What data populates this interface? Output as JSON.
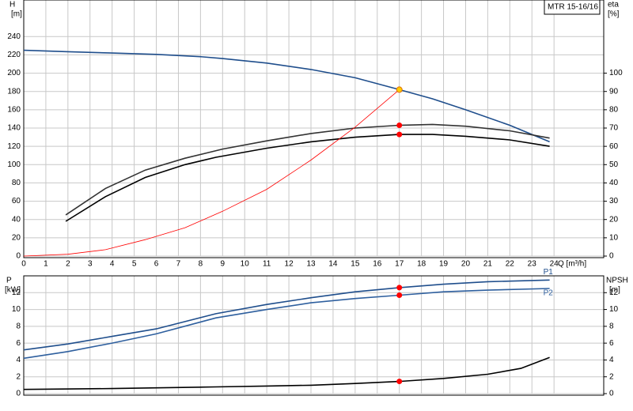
{
  "chart_data": [
    {
      "type": "line",
      "title": "MTR 15-16/16",
      "y_label": "H",
      "y_unit": "[m]",
      "y2_label": "eta",
      "y2_unit": "[%]",
      "x_label": "Q [m³/h]",
      "xlim": [
        0,
        26.25
      ],
      "xticks": [
        0,
        1,
        2,
        3,
        4,
        5,
        6,
        7,
        8,
        9,
        10,
        11,
        12,
        13,
        14,
        15,
        16,
        17,
        18,
        19,
        20,
        21,
        22,
        23,
        24
      ],
      "ylim": [
        0,
        280
      ],
      "yticks": [
        0,
        20,
        40,
        60,
        80,
        100,
        120,
        140,
        160,
        180,
        200,
        220,
        240
      ],
      "y2lim": [
        0,
        140
      ],
      "y2ticks": [
        0,
        10,
        20,
        30,
        40,
        50,
        60,
        70,
        80,
        90,
        100
      ],
      "grid": true,
      "series": [
        {
          "color": "#1f4e8c",
          "x": [
            0,
            2,
            4,
            6,
            8,
            9,
            11,
            13,
            15,
            17,
            18.5,
            20,
            22,
            23.8
          ],
          "values": [
            225,
            223.5,
            222,
            220.5,
            218,
            216,
            211,
            204,
            195,
            182,
            172,
            160,
            143,
            125
          ]
        },
        {
          "color": "#333333",
          "axis": "y2",
          "x": [
            1.9,
            3.7,
            5.5,
            7.3,
            9,
            11,
            13,
            15,
            17,
            18.5,
            20,
            22,
            23.8
          ],
          "values": [
            22.5,
            37,
            47,
            53.5,
            58.5,
            63,
            67,
            70,
            71.5,
            72,
            71,
            68.5,
            64.5
          ]
        },
        {
          "color": "#000000",
          "axis": "y2",
          "x": [
            1.9,
            3.7,
            5.5,
            7.3,
            8.7,
            11,
            13,
            15,
            17,
            18.5,
            20,
            22,
            23.8
          ],
          "values": [
            19,
            32.5,
            43,
            50,
            54,
            59,
            62.5,
            65,
            66.5,
            66.5,
            65.5,
            63.5,
            60
          ]
        },
        {
          "color": "#ff0000",
          "x": [
            0,
            2,
            3.7,
            5.5,
            7.3,
            9,
            11,
            13,
            15,
            17
          ],
          "values": [
            0,
            2,
            7,
            18,
            31,
            49,
            73,
            105,
            141,
            182
          ]
        }
      ],
      "points": [
        {
          "x": 17,
          "value": 182,
          "color": "#ffcc00"
        },
        {
          "x": 17,
          "value": 71.5,
          "axis": "y2",
          "color": "#ff0000"
        },
        {
          "x": 17,
          "value": 66.5,
          "axis": "y2",
          "color": "#ff0000"
        }
      ]
    },
    {
      "type": "line",
      "y_label": "P",
      "y_unit": "[kW]",
      "y2_label": "NPSH",
      "y2_unit": "[m]",
      "xlim": [
        0,
        26.25
      ],
      "xticks": [
        0,
        1,
        2,
        3,
        4,
        5,
        6,
        7,
        8,
        9,
        10,
        11,
        12,
        13,
        14,
        15,
        16,
        17,
        18,
        19,
        20,
        21,
        22,
        23,
        24
      ],
      "ylim": [
        0,
        14
      ],
      "yticks": [
        0,
        2,
        4,
        6,
        8,
        10,
        12
      ],
      "y2lim": [
        0,
        14
      ],
      "y2ticks": [
        0,
        2,
        4,
        6,
        8,
        10,
        12
      ],
      "grid": true,
      "series": [
        {
          "name": "P1",
          "color": "#1f4e8c",
          "x": [
            0,
            2,
            4,
            6,
            8.7,
            11,
            13,
            15,
            17,
            19,
            21,
            23.8
          ],
          "values": [
            5.2,
            5.9,
            6.8,
            7.7,
            9.5,
            10.6,
            11.4,
            12.1,
            12.6,
            13.0,
            13.3,
            13.5
          ]
        },
        {
          "name": "P2",
          "color": "#2e5f9e",
          "x": [
            0,
            2,
            4,
            6,
            8.7,
            11,
            13,
            15,
            17,
            19,
            21,
            23.8
          ],
          "values": [
            4.2,
            5.0,
            6.0,
            7.1,
            9.0,
            10.0,
            10.8,
            11.3,
            11.7,
            12.1,
            12.3,
            12.5
          ]
        },
        {
          "color": "#000000",
          "axis": "y2",
          "x": [
            0,
            4,
            8.7,
            11,
            13,
            15,
            17,
            19,
            21,
            22.5,
            23.8
          ],
          "values": [
            0.5,
            0.6,
            0.8,
            0.9,
            1.0,
            1.2,
            1.45,
            1.8,
            2.3,
            3.0,
            4.3
          ]
        }
      ],
      "points": [
        {
          "x": 17,
          "value": 12.6,
          "color": "#ff0000"
        },
        {
          "x": 17,
          "value": 11.7,
          "color": "#ff0000"
        },
        {
          "x": 17,
          "value": 1.45,
          "axis": "y2",
          "color": "#ff0000"
        }
      ]
    }
  ]
}
